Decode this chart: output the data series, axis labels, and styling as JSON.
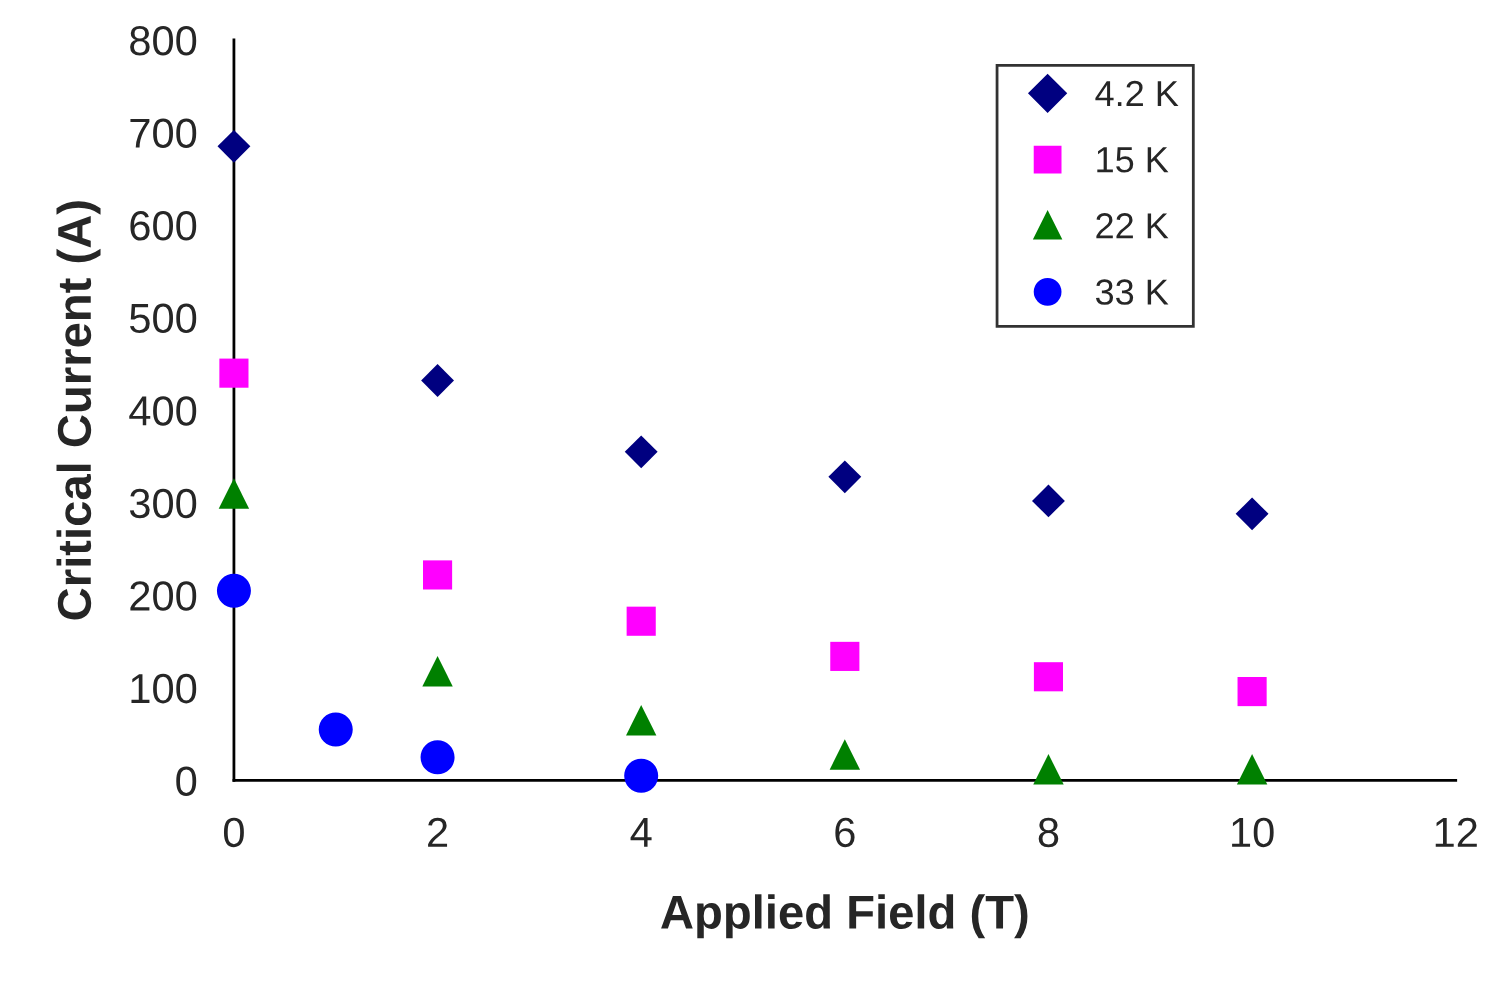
{
  "chart_data": {
    "type": "scatter",
    "xlabel": "Applied Field (T)",
    "ylabel": "Critical Current (A)",
    "xlim": [
      0,
      12
    ],
    "xticks": [
      0,
      2,
      4,
      6,
      8,
      10,
      12
    ],
    "ylim": [
      0,
      800
    ],
    "yticks": [
      0,
      100,
      200,
      300,
      400,
      500,
      600,
      700,
      800
    ],
    "grid": false,
    "legend": "top right",
    "series": [
      {
        "name": "4.2 K",
        "color": "#000080",
        "marker": "diamond",
        "x": [
          0,
          2,
          4,
          6,
          8,
          10
        ],
        "values": [
          685,
          432,
          355,
          328,
          302,
          288
        ]
      },
      {
        "name": "15 K",
        "color": "#ff00ff",
        "marker": "square",
        "x": [
          0,
          2,
          4,
          6,
          8,
          10
        ],
        "values": [
          440,
          222,
          172,
          134,
          112,
          96
        ]
      },
      {
        "name": "22 K",
        "color": "#008000",
        "marker": "triangle",
        "x": [
          0,
          2,
          4,
          6,
          8,
          10
        ],
        "values": [
          310,
          118,
          65,
          28,
          12,
          12
        ]
      },
      {
        "name": "33 K",
        "color": "#0000ff",
        "marker": "circle",
        "x": [
          0,
          1,
          2,
          4
        ],
        "values": [
          205,
          55,
          25,
          5
        ]
      }
    ]
  }
}
